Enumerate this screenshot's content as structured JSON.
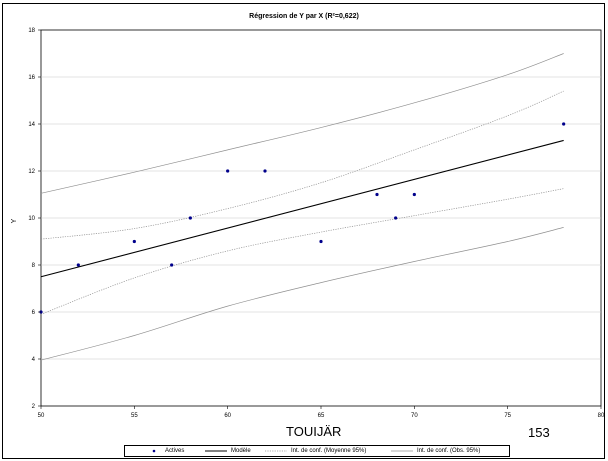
{
  "chart_data": {
    "type": "scatter",
    "title": "Régression de Y par X (R²=0,622)",
    "xlabel": "",
    "ylabel": "Y",
    "xlim": [
      50,
      80
    ],
    "ylim": [
      2,
      18
    ],
    "xticks": [
      50,
      55,
      60,
      65,
      70,
      75,
      80
    ],
    "yticks": [
      2,
      4,
      6,
      8,
      10,
      12,
      14,
      16,
      18
    ],
    "grid": true,
    "legend_position": "bottom",
    "series": [
      {
        "name": "Actives",
        "kind": "points",
        "color": "#00008b",
        "x": [
          50,
          52,
          55,
          57,
          58,
          60,
          62,
          65,
          68,
          69,
          70,
          78
        ],
        "y": [
          6,
          8,
          9,
          8,
          10,
          12,
          12,
          9,
          11,
          10,
          11,
          14
        ]
      },
      {
        "name": "Modèle",
        "kind": "line",
        "color": "#000000",
        "x": [
          50,
          78
        ],
        "y": [
          7.5,
          13.3
        ]
      },
      {
        "name": "Int. de conf. (Moyenne 95%)",
        "kind": "band",
        "color": "#909090",
        "x": [
          50,
          55,
          60,
          65,
          70,
          75,
          78
        ],
        "lower": [
          5.9,
          7.45,
          8.6,
          9.4,
          10.1,
          10.8,
          11.25
        ],
        "upper": [
          9.1,
          9.55,
          10.4,
          11.5,
          12.9,
          14.35,
          15.4
        ]
      },
      {
        "name": "Int. de conf. (Obs. 95%)",
        "kind": "band",
        "color": "#909090",
        "x": [
          50,
          55,
          60,
          65,
          70,
          75,
          78
        ],
        "lower": [
          3.95,
          5.0,
          6.25,
          7.25,
          8.15,
          9.0,
          9.6
        ],
        "upper": [
          11.05,
          11.95,
          12.9,
          13.85,
          14.9,
          16.1,
          17.0
        ]
      }
    ]
  },
  "overlay": {
    "label_left": "TOUIJÄR",
    "label_right": "153"
  }
}
